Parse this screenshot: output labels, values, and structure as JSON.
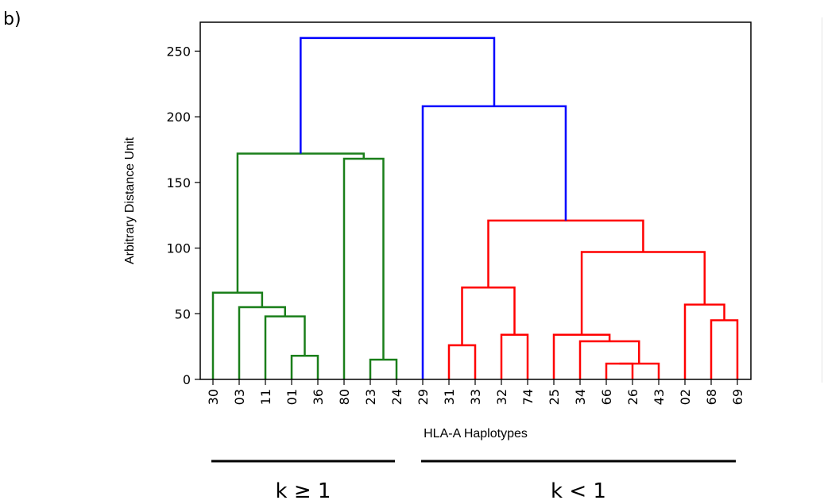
{
  "panel_label": "b)",
  "chart_data": {
    "type": "dendrogram",
    "xlabel": "HLA-A Haplotypes",
    "ylabel": "Arbitrary Distance Unit",
    "ylim": [
      0,
      272
    ],
    "yticks": [
      0,
      50,
      100,
      150,
      200,
      250
    ],
    "leaves": [
      "30",
      "03",
      "11",
      "01",
      "36",
      "80",
      "23",
      "24",
      "29",
      "31",
      "33",
      "32",
      "74",
      "25",
      "34",
      "66",
      "26",
      "43",
      "02",
      "68",
      "69"
    ],
    "colors": {
      "green": "#1a7f1a",
      "red": "#ff0000",
      "blue": "#0000ff"
    },
    "links": [
      {
        "left": 3,
        "right": 4,
        "height": 18,
        "color": "green"
      },
      {
        "left": 2,
        "right": "n0",
        "height": 48,
        "color": "green"
      },
      {
        "left": 1,
        "right": "n1",
        "height": 55,
        "color": "green"
      },
      {
        "left": 0,
        "right": "n2",
        "height": 66,
        "color": "green"
      },
      {
        "left": 6,
        "right": 7,
        "height": 15,
        "color": "green"
      },
      {
        "left": 5,
        "right": "n4",
        "height": 168,
        "color": "green"
      },
      {
        "left": "n3",
        "right": "n5",
        "height": 172,
        "color": "green"
      },
      {
        "left": 9,
        "right": 10,
        "height": 26,
        "color": "red"
      },
      {
        "left": 11,
        "right": 12,
        "height": 34,
        "color": "red"
      },
      {
        "left": "n7",
        "right": "n8",
        "height": 70,
        "color": "red"
      },
      {
        "left": 15,
        "right": 16,
        "height": 12,
        "color": "red"
      },
      {
        "left": "n10",
        "right": 17,
        "height": 12,
        "color": "red"
      },
      {
        "left": 14,
        "right": "n11",
        "height": 29,
        "color": "red"
      },
      {
        "left": 13,
        "right": "n12",
        "height": 34,
        "color": "red"
      },
      {
        "left": 19,
        "right": 20,
        "height": 45,
        "color": "red"
      },
      {
        "left": 18,
        "right": "n14",
        "height": 57,
        "color": "red"
      },
      {
        "left": "n13",
        "right": "n15",
        "height": 97,
        "color": "red"
      },
      {
        "left": "n9",
        "right": "n16",
        "height": 121,
        "color": "red"
      },
      {
        "left": 8,
        "right": "n17",
        "height": 208,
        "color": "blue"
      },
      {
        "left": "n6",
        "right": "n18",
        "height": 260,
        "color": "blue"
      }
    ],
    "groups": [
      {
        "label": "k ≥ 1",
        "from": 0,
        "to": 7
      },
      {
        "label": "k < 1",
        "from": 8,
        "to": 20
      }
    ]
  }
}
